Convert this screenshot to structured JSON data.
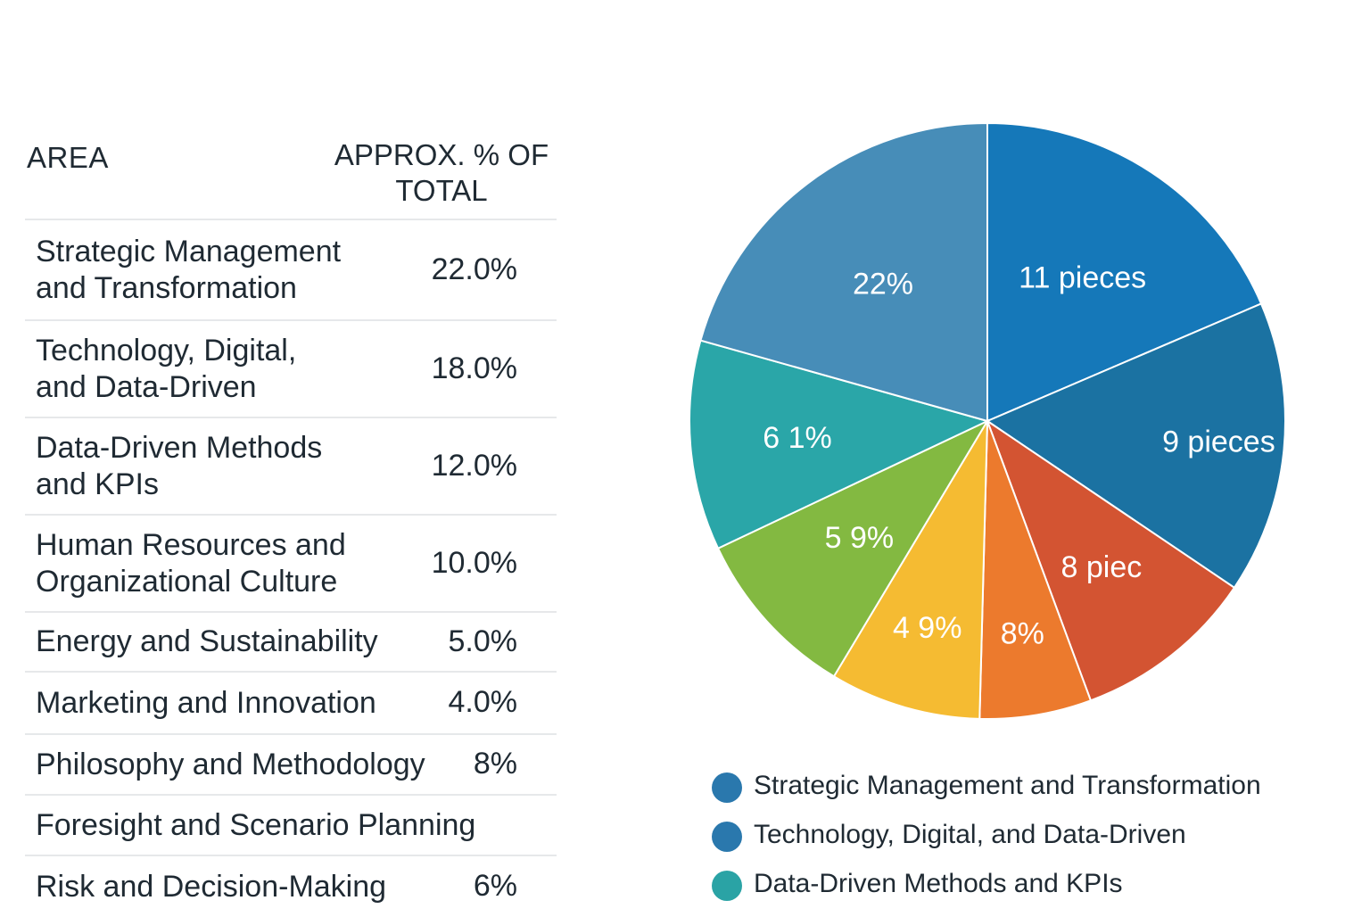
{
  "table": {
    "headers": {
      "area": "AREA",
      "percent_line1": "APPROX. % OF",
      "percent_line2": "TOTAL"
    },
    "rows": [
      {
        "area_line1": "Strategic Management",
        "area_line2": "and Transformation",
        "percent": "22.0%"
      },
      {
        "area_line1": "Technology, Digital,",
        "area_line2": "and Data-Driven",
        "percent": "18.0%"
      },
      {
        "area_line1": "Data-Driven Methods",
        "area_line2": "and KPIs",
        "percent": "12.0%"
      },
      {
        "area_line1": "Human Resources and",
        "area_line2": "Organizational Culture",
        "percent": "10.0%"
      },
      {
        "area_line1": "Energy and Sustainability",
        "area_line2": "",
        "percent": "5.0%"
      },
      {
        "area_line1": "Marketing and Innovation",
        "area_line2": "",
        "percent": "4.0%"
      },
      {
        "area_line1": "Philosophy and Methodology",
        "area_line2": "",
        "percent": "8%"
      },
      {
        "area_line1": "Foresight and Scenario Planning",
        "area_line2": "",
        "percent": ""
      },
      {
        "area_line1": "Risk and Decision-Making",
        "area_line2": "",
        "percent": "6%"
      }
    ]
  },
  "chart_data": {
    "type": "pie",
    "title": "",
    "start_angle_deg": 0,
    "direction": "clockwise",
    "slices": [
      {
        "label": "11 pieces",
        "value": 66.8,
        "color": "#1578b9"
      },
      {
        "label": "9 pieces",
        "value": 57.2,
        "color": "#1b72a2"
      },
      {
        "label": "8 piec",
        "value": 35.7,
        "color": "#d35432"
      },
      {
        "label": "8%",
        "value": 21.8,
        "color": "#ec7a2d"
      },
      {
        "label": "4 9%",
        "value": 29.5,
        "color": "#f5bb32"
      },
      {
        "label": "5 9%",
        "value": 33.7,
        "color": "#83b941"
      },
      {
        "label": "6 1%",
        "value": 41.0,
        "color": "#2aa6a8"
      },
      {
        "label": "22%",
        "value": 74.3,
        "color": "#478db8"
      }
    ],
    "value_units": "degrees of arc (estimated)",
    "legend": {
      "placement": "bottom",
      "entries": [
        {
          "label": "Strategic Management and Transformation",
          "color": "#2a78ad"
        },
        {
          "label": "Technology, Digital, and Data-Driven",
          "color": "#2a78ad"
        },
        {
          "label": "Data-Driven Methods and KPIs",
          "color": "#2aa3a5"
        }
      ]
    }
  }
}
